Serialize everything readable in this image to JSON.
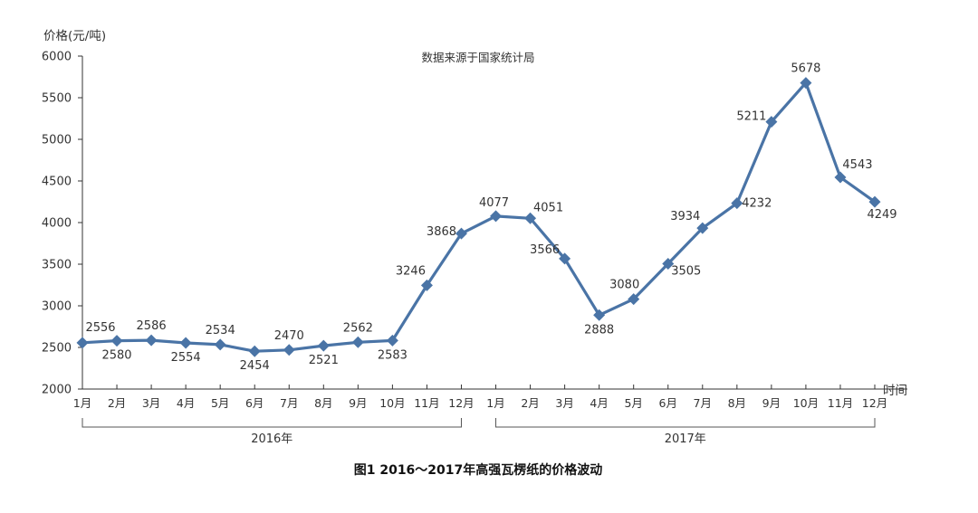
{
  "chart_data": {
    "type": "line",
    "ylabel": "价格(元/吨)",
    "xlabel": "时间",
    "subtitle": "数据来源于国家统计局",
    "caption": "图1  2016～2017年高强瓦楞纸的价格波动",
    "ylim": [
      2000,
      6000
    ],
    "yticks": [
      2000,
      2500,
      3000,
      3500,
      4000,
      4500,
      5000,
      5500,
      6000
    ],
    "grid": false,
    "categories": [
      "1月",
      "2月",
      "3月",
      "4月",
      "5月",
      "6月",
      "7月",
      "8月",
      "9月",
      "10月",
      "11月",
      "12月",
      "1月",
      "2月",
      "3月",
      "4月",
      "5月",
      "6月",
      "7月",
      "8月",
      "9月",
      "10月",
      "11月",
      "12月"
    ],
    "groups": [
      {
        "label": "2016年",
        "start": 0,
        "end": 11
      },
      {
        "label": "2017年",
        "start": 12,
        "end": 23
      }
    ],
    "series": [
      {
        "color": "#4a74a6",
        "values": [
          2556,
          2580,
          2586,
          2554,
          2534,
          2454,
          2470,
          2521,
          2562,
          2583,
          3246,
          3868,
          4077,
          4051,
          3566,
          2888,
          3080,
          3505,
          3934,
          4232,
          5211,
          5678,
          4543,
          4249
        ]
      }
    ]
  }
}
